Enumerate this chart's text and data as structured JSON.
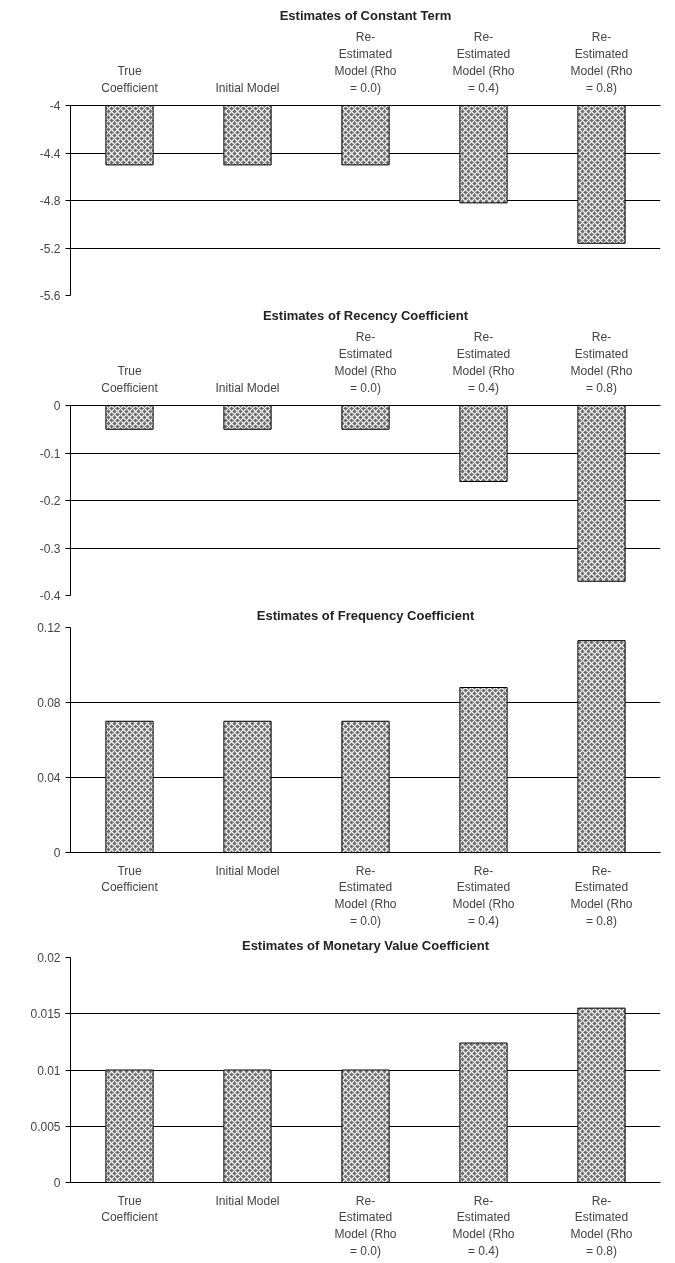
{
  "chart_data": [
    {
      "type": "bar",
      "title": "Estimates of Constant Term",
      "categories": [
        "True\nCoefficient",
        "Initial Model",
        "Re-\nEstimated\nModel (Rho\n= 0.0)",
        "Re-\nEstimated\nModel (Rho\n= 0.4)",
        "Re-\nEstimated\nModel (Rho\n= 0.8)"
      ],
      "values": [
        -4.5,
        -4.5,
        -4.5,
        -4.82,
        -5.16
      ],
      "color": "#6e6e6e",
      "ylim": [
        -5.6,
        -4
      ],
      "yticks": [
        -5.6,
        -5.2,
        -4.8,
        -4.4,
        -4
      ],
      "grid": "y"
    },
    {
      "type": "bar",
      "title": "Estimates of Recency Coefficient",
      "categories": [
        "True\nCoefficient",
        "Initial Model",
        "Re-\nEstimated\nModel (Rho\n= 0.0)",
        "Re-\nEstimated\nModel (Rho\n= 0.4)",
        "Re-\nEstimated\nModel (Rho\n= 0.8)"
      ],
      "values": [
        -0.05,
        -0.05,
        -0.05,
        -0.16,
        -0.37
      ],
      "color": "#6e6e6e",
      "ylim": [
        -0.4,
        0
      ],
      "yticks": [
        -0.4,
        -0.3,
        -0.2,
        -0.1,
        0
      ],
      "grid": "y"
    },
    {
      "type": "bar",
      "title": "Estimates of Frequency Coefficient",
      "categories": [
        "True\nCoefficient",
        "Initial Model",
        "Re-\nEstimated\nModel (Rho\n= 0.0)",
        "Re-\nEstimated\nModel (Rho\n= 0.4)",
        "Re-\nEstimated\nModel (Rho\n= 0.8)"
      ],
      "values": [
        0.07,
        0.07,
        0.07,
        0.088,
        0.113
      ],
      "color": "#6e6e6e",
      "ylim": [
        0,
        0.12
      ],
      "yticks": [
        0,
        0.04,
        0.08,
        0.12
      ],
      "grid": "y"
    },
    {
      "type": "bar",
      "title": "Estimates of Monetary Value Coefficient",
      "categories": [
        "True\nCoefficient",
        "Initial Model",
        "Re-\nEstimated\nModel (Rho\n= 0.0)",
        "Re-\nEstimated\nModel (Rho\n= 0.4)",
        "Re-\nEstimated\nModel (Rho\n= 0.8)"
      ],
      "values": [
        0.01,
        0.01,
        0.01,
        0.0124,
        0.0155
      ],
      "color": "#6e6e6e",
      "ylim": [
        0,
        0.02
      ],
      "yticks": [
        0,
        0.005,
        0.01,
        0.015,
        0.02
      ],
      "grid": "y"
    }
  ]
}
